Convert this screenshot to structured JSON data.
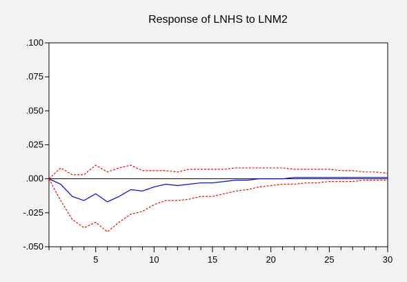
{
  "chart_data": {
    "type": "line",
    "title": "Response of LNHS to LNM2",
    "xlabel": "",
    "ylabel": "",
    "xlim": [
      1,
      30
    ],
    "ylim": [
      -0.05,
      0.1
    ],
    "x_ticks": [
      5,
      10,
      15,
      20,
      25,
      30
    ],
    "x_tick_labels": [
      "5",
      "10",
      "15",
      "20",
      "25",
      "30"
    ],
    "y_ticks": [
      0.1,
      0.075,
      0.05,
      0.025,
      0.0,
      -0.025,
      -0.05
    ],
    "y_tick_labels": [
      ".100",
      ".075",
      ".050",
      ".025",
      ".000",
      "-.025",
      "-.050"
    ],
    "grid": false,
    "zero_line": true,
    "x": [
      1,
      2,
      3,
      4,
      5,
      6,
      7,
      8,
      9,
      10,
      11,
      12,
      13,
      14,
      15,
      16,
      17,
      18,
      19,
      20,
      21,
      22,
      23,
      24,
      25,
      26,
      27,
      28,
      29,
      30
    ],
    "series": [
      {
        "role": "response",
        "color": "#0000ff",
        "style": "solid",
        "values": [
          0.0,
          -0.004,
          -0.013,
          -0.016,
          -0.011,
          -0.017,
          -0.013,
          -0.008,
          -0.009,
          -0.006,
          -0.004,
          -0.005,
          -0.004,
          -0.003,
          -0.003,
          -0.002,
          -0.001,
          -0.001,
          0.0,
          0.0,
          0.0,
          0.001,
          0.001,
          0.001,
          0.001,
          0.001,
          0.001,
          0.001,
          0.001,
          0.001
        ]
      },
      {
        "role": "upper_band",
        "color": "#ff0000",
        "style": "dashed",
        "values": [
          0.0,
          0.008,
          0.003,
          0.003,
          0.01,
          0.005,
          0.008,
          0.01,
          0.006,
          0.006,
          0.006,
          0.005,
          0.007,
          0.007,
          0.007,
          0.007,
          0.008,
          0.008,
          0.008,
          0.008,
          0.008,
          0.007,
          0.007,
          0.007,
          0.007,
          0.006,
          0.006,
          0.005,
          0.005,
          0.004
        ]
      },
      {
        "role": "lower_band",
        "color": "#ff0000",
        "style": "dashed",
        "values": [
          0.0,
          -0.016,
          -0.03,
          -0.036,
          -0.032,
          -0.039,
          -0.032,
          -0.026,
          -0.024,
          -0.019,
          -0.016,
          -0.016,
          -0.015,
          -0.013,
          -0.013,
          -0.011,
          -0.009,
          -0.008,
          -0.006,
          -0.005,
          -0.004,
          -0.004,
          -0.003,
          -0.003,
          -0.002,
          -0.002,
          -0.002,
          -0.001,
          -0.001,
          -0.001
        ]
      }
    ]
  }
}
